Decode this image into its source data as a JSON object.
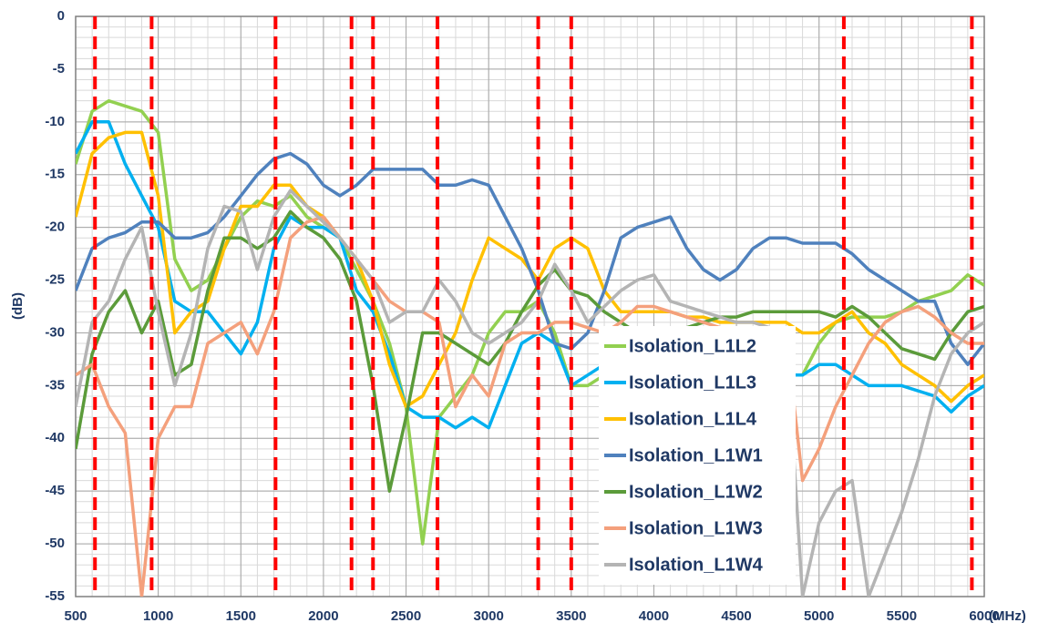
{
  "chart_data": {
    "type": "line",
    "x_label": "(MHz)",
    "y_label": "(dB)",
    "xlim": [
      500,
      6000
    ],
    "ylim": [
      -55,
      0
    ],
    "xticks": [
      500,
      1000,
      1500,
      2000,
      2500,
      3000,
      3500,
      4000,
      4500,
      5000,
      5500,
      6000
    ],
    "yticks": [
      0,
      -5,
      -10,
      -15,
      -20,
      -25,
      -30,
      -35,
      -40,
      -45,
      -50,
      -55
    ],
    "grid": true,
    "minor_grid": {
      "x": 100,
      "y": 1
    },
    "legend": "lower right",
    "vlines": [
      617,
      960,
      1710,
      2170,
      2300,
      2690,
      3300,
      3500,
      5150,
      5925
    ],
    "vline_color": "#ff0000",
    "x": [
      500,
      600,
      700,
      800,
      900,
      1000,
      1100,
      1200,
      1300,
      1400,
      1500,
      1600,
      1700,
      1800,
      1900,
      2000,
      2100,
      2200,
      2300,
      2400,
      2500,
      2600,
      2700,
      2800,
      2900,
      3000,
      3100,
      3200,
      3300,
      3400,
      3500,
      3600,
      3700,
      3800,
      3900,
      4000,
      4100,
      4200,
      4300,
      4400,
      4500,
      4600,
      4700,
      4800,
      4900,
      5000,
      5100,
      5200,
      5300,
      5400,
      5500,
      5600,
      5700,
      5800,
      5900,
      6000
    ],
    "series": [
      {
        "name": "Isolation_L1L2",
        "color": "#92d050",
        "values": [
          -14,
          -9,
          -8,
          -8.5,
          -9,
          -11,
          -23,
          -26,
          -25,
          -22,
          -19,
          -17.5,
          -18,
          -17,
          -19,
          -20,
          -21,
          -24,
          -27,
          -31,
          -37,
          -50,
          -38,
          -36,
          -34,
          -30,
          -28,
          -28,
          -27,
          -30,
          -35,
          -35,
          -34,
          -33,
          -32,
          -31,
          -31,
          -31,
          -31,
          -31,
          -32,
          -33,
          -33,
          -34,
          -34,
          -31,
          -29,
          -28.5,
          -28.5,
          -28.5,
          -28,
          -27,
          -26.5,
          -26,
          -24.5,
          -25.5
        ]
      },
      {
        "name": "Isolation_L1L3",
        "color": "#00b0f0",
        "values": [
          -13,
          -10,
          -10,
          -14,
          -17,
          -20,
          -27,
          -28,
          -28,
          -30,
          -32,
          -29,
          -22,
          -19,
          -20,
          -20,
          -21,
          -26,
          -28,
          -32,
          -37,
          -38,
          -38,
          -39,
          -38,
          -39,
          -35,
          -31,
          -30,
          -31,
          -35,
          -34,
          -33,
          -32,
          -30,
          -30,
          -30,
          -31,
          -31,
          -32,
          -32,
          -33,
          -33,
          -34,
          -34,
          -33,
          -33,
          -34,
          -35,
          -35,
          -35,
          -35.5,
          -36,
          -37.5,
          -36,
          -35
        ]
      },
      {
        "name": "Isolation_L1L4",
        "color": "#ffc000",
        "values": [
          -19,
          -13,
          -11.5,
          -11,
          -11,
          -17,
          -30,
          -28,
          -27,
          -22,
          -18,
          -18,
          -16,
          -16,
          -18,
          -19,
          -21,
          -23,
          -27,
          -33,
          -37,
          -36,
          -33,
          -30,
          -25,
          -21,
          -22,
          -23,
          -25,
          -22,
          -21,
          -22,
          -26,
          -28,
          -28,
          -28,
          -28,
          -28.5,
          -28.5,
          -29,
          -29,
          -29,
          -29,
          -29,
          -30,
          -30,
          -29,
          -28,
          -30,
          -31,
          -33,
          -34,
          -35,
          -36.5,
          -35,
          -34
        ]
      },
      {
        "name": "Isolation_L1W1",
        "color": "#4f81bd",
        "values": [
          -26,
          -22,
          -21,
          -20.5,
          -19.5,
          -19.5,
          -21,
          -21,
          -20.5,
          -19,
          -17,
          -15,
          -13.5,
          -13,
          -14,
          -16,
          -17,
          -16,
          -14.5,
          -14.5,
          -14.5,
          -14.5,
          -16,
          -16,
          -15.5,
          -16,
          -19,
          -22,
          -26,
          -31,
          -31.5,
          -30,
          -26,
          -21,
          -20,
          -19.5,
          -19,
          -22,
          -24,
          -25,
          -24,
          -22,
          -21,
          -21,
          -21.5,
          -21.5,
          -21.5,
          -22.5,
          -24,
          -25,
          -26,
          -27,
          -27,
          -31,
          -33,
          -31
        ]
      },
      {
        "name": "Isolation_L1W2",
        "color": "#5b9b3a",
        "values": [
          -41,
          -32,
          -28,
          -26,
          -30,
          -27,
          -34,
          -33,
          -26,
          -21,
          -21,
          -22,
          -21,
          -18.5,
          -20,
          -21,
          -23,
          -27,
          -35,
          -45,
          -38,
          -30,
          -30,
          -31,
          -32,
          -33,
          -31,
          -28,
          -25.5,
          -24,
          -26,
          -26.5,
          -28,
          -29,
          -30,
          -30,
          -30,
          -29.5,
          -29,
          -28.5,
          -28.5,
          -28,
          -28,
          -28,
          -28,
          -28,
          -28.5,
          -27.5,
          -28.5,
          -30,
          -31.5,
          -32,
          -32.5,
          -30,
          -28,
          -27.5
        ]
      },
      {
        "name": "Isolation_L1W3",
        "color": "#f4a07c",
        "values": [
          -34,
          -33,
          -37,
          -39.5,
          -55,
          -40,
          -37,
          -37,
          -31,
          -30,
          -29,
          -32,
          -28,
          -21,
          -19.5,
          -19,
          -21,
          -23,
          -25,
          -27,
          -28,
          -28,
          -29,
          -37,
          -34,
          -36,
          -31,
          -30,
          -30,
          -29,
          -29,
          -29.5,
          -30,
          -29,
          -27.5,
          -27.5,
          -28,
          -28.5,
          -29,
          -29.5,
          -30,
          -30,
          -30,
          -30,
          -44,
          -41,
          -37,
          -34,
          -31,
          -29,
          -28,
          -27.5,
          -28.5,
          -30,
          -31,
          -31
        ]
      },
      {
        "name": "Isolation_L1W4",
        "color": "#b4b4b4",
        "values": [
          -37,
          -29,
          -27,
          -23,
          -20,
          -28,
          -35,
          -30,
          -22,
          -18,
          -18.5,
          -24,
          -19,
          -16.5,
          -18,
          -19.5,
          -21,
          -23,
          -25,
          -29,
          -28,
          -28,
          -25,
          -27,
          -30,
          -31,
          -30,
          -29,
          -27,
          -23.5,
          -26,
          -29,
          -27.5,
          -26,
          -25,
          -24.5,
          -27,
          -27.5,
          -28,
          -28.5,
          -29,
          -29,
          -29.5,
          -30,
          -55,
          -48,
          -45,
          -44,
          -55,
          -51,
          -47,
          -42,
          -36,
          -32,
          -30,
          -29
        ]
      }
    ]
  }
}
